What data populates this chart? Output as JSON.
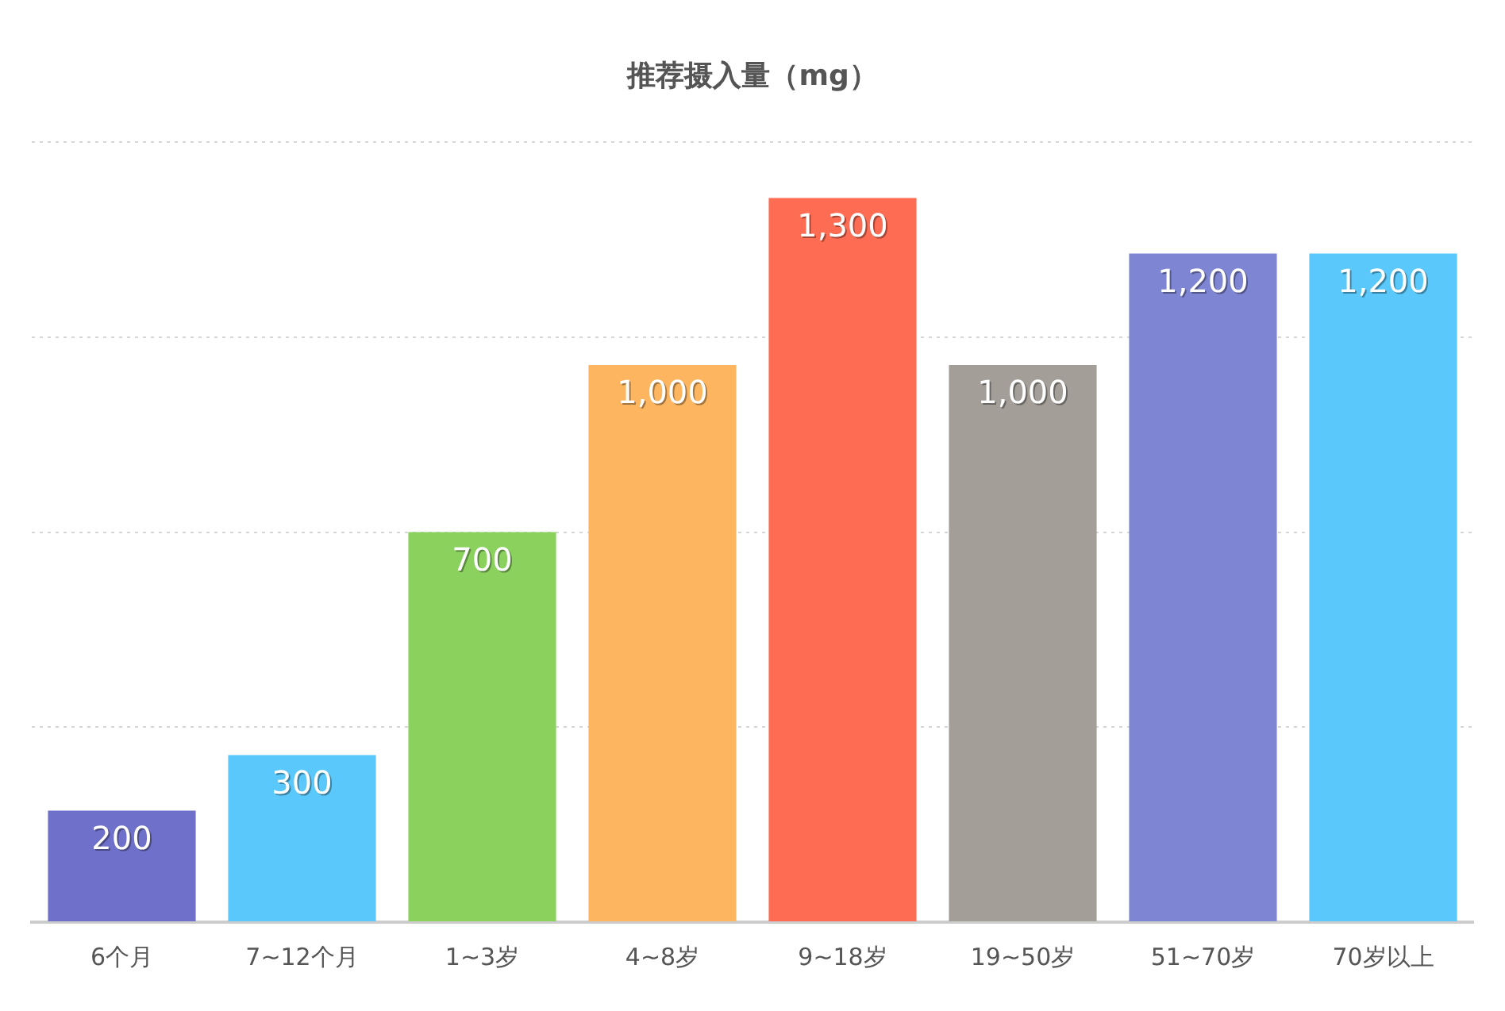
{
  "chart_data": {
    "type": "bar",
    "title": "推荐摄入量（mg）",
    "categories": [
      "6个月",
      "7~12个月",
      "1~3岁",
      "4~8岁",
      "9~18岁",
      "19~50岁",
      "51~70岁",
      "70岁以上"
    ],
    "values": [
      200,
      300,
      700,
      1000,
      1300,
      1000,
      1200,
      1200
    ],
    "colors": [
      "#6f70c9",
      "#5ac8fa",
      "#8bd15e",
      "#fdb55f",
      "#fd6c53",
      "#a39e97",
      "#7e85d3",
      "#5ac8fa"
    ],
    "value_labels": [
      "200",
      "300",
      "700",
      "1,000",
      "1,300",
      "1,000",
      "1,200",
      "1,200"
    ],
    "ylim": [
      0,
      1400
    ],
    "yticks": [
      {
        "value": 0,
        "label": null
      },
      {
        "value": 350,
        "label": null
      },
      {
        "value": 700,
        "label": null
      },
      {
        "value": 1050,
        "label": null
      },
      {
        "value": 1400,
        "label": null
      }
    ],
    "grid": "y",
    "tick_labels": "x",
    "legend": false
  }
}
